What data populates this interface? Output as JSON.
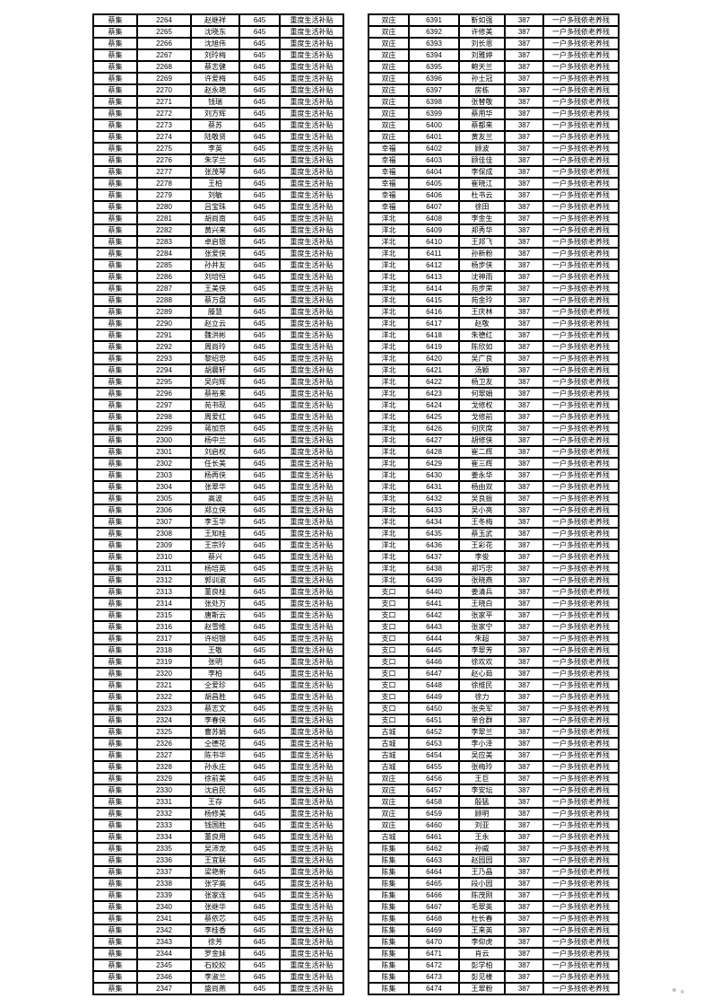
{
  "page": {
    "background": "#ffffff",
    "artifact_color": "#c0c0c0"
  },
  "tables": [
    {
      "id": "left-roster",
      "default_town": "蔡集",
      "amount": "645",
      "category": "重度生活补贴",
      "rows": [
        [
          "2264",
          "赵继祥"
        ],
        [
          "2265",
          "沈晓东"
        ],
        [
          "2266",
          "沈旭伟"
        ],
        [
          "2267",
          "刘玲梅"
        ],
        [
          "2268",
          "蔡志健"
        ],
        [
          "2269",
          "许爱梅"
        ],
        [
          "2270",
          "赵永艳"
        ],
        [
          "2271",
          "钱瑞"
        ],
        [
          "2272",
          "刘方辉"
        ],
        [
          "2273",
          "蔡苏"
        ],
        [
          "2274",
          "陆敬贤"
        ],
        [
          "2275",
          "李英"
        ],
        [
          "2276",
          "朱学兰"
        ],
        [
          "2277",
          "张茂琴"
        ],
        [
          "2278",
          "王柏"
        ],
        [
          "2279",
          "刘敏"
        ],
        [
          "2280",
          "吕宝珠"
        ],
        [
          "2281",
          "胡尚南"
        ],
        [
          "2282",
          "黄兴来"
        ],
        [
          "2283",
          "卓启银"
        ],
        [
          "2284",
          "张爱侠"
        ],
        [
          "2285",
          "孙井友"
        ],
        [
          "2286",
          "刘培恒"
        ],
        [
          "2287",
          "王美侠"
        ],
        [
          "2288",
          "蔡万盘"
        ],
        [
          "2289",
          "滕慧"
        ],
        [
          "2290",
          "赵立云"
        ],
        [
          "2291",
          "魏洪彬"
        ],
        [
          "2292",
          "周尚玲"
        ],
        [
          "2293",
          "黎绍忠"
        ],
        [
          "2294",
          "胡晨轩"
        ],
        [
          "2295",
          "吴向辉"
        ],
        [
          "2296",
          "蔡裕来"
        ],
        [
          "2297",
          "苑书现"
        ],
        [
          "2298",
          "周爱红"
        ],
        [
          "2299",
          "蒋加京"
        ],
        [
          "2300",
          "杨中兰"
        ],
        [
          "2301",
          "刘启权"
        ],
        [
          "2302",
          "任长美"
        ],
        [
          "2303",
          "杨再侠"
        ],
        [
          "2304",
          "张翠华"
        ],
        [
          "2305",
          "高波"
        ],
        [
          "2306",
          "郑立侠"
        ],
        [
          "2307",
          "李玉华"
        ],
        [
          "2308",
          "王知桂"
        ],
        [
          "2309",
          "王宗玲"
        ],
        [
          "2310",
          "蔡兴"
        ],
        [
          "2311",
          "杨培英"
        ],
        [
          "2312",
          "郭训淑"
        ],
        [
          "2313",
          "董良桂"
        ],
        [
          "2314",
          "张处万"
        ],
        [
          "2315",
          "唐斯云"
        ],
        [
          "2316",
          "赵雪维"
        ],
        [
          "2317",
          "许绍银"
        ],
        [
          "2318",
          "王敬"
        ],
        [
          "2319",
          "张明"
        ],
        [
          "2320",
          "李柏"
        ],
        [
          "2321",
          "仝爱珍"
        ],
        [
          "2322",
          "胡昌胜"
        ],
        [
          "2323",
          "蔡志文"
        ],
        [
          "2324",
          "李春侠"
        ],
        [
          "2325",
          "曹苏娟"
        ],
        [
          "2326",
          "仝德花"
        ],
        [
          "2327",
          "陈书华"
        ],
        [
          "2328",
          "孙永庄"
        ],
        [
          "2329",
          "徐前美"
        ],
        [
          "2330",
          "沈启民"
        ],
        [
          "2331",
          "王存"
        ],
        [
          "2332",
          "杨修美"
        ],
        [
          "2333",
          "钱国胜"
        ],
        [
          "2334",
          "董良用"
        ],
        [
          "2335",
          "吴沛龙"
        ],
        [
          "2336",
          "王宜联"
        ],
        [
          "2337",
          "梁艳新"
        ],
        [
          "2338",
          "张学高"
        ],
        [
          "2339",
          "张家连"
        ],
        [
          "2340",
          "张继华"
        ],
        [
          "2341",
          "蔡依芯"
        ],
        [
          "2342",
          "李桂香"
        ],
        [
          "2343",
          "徐芳"
        ],
        [
          "2344",
          "罗金妹"
        ],
        [
          "2345",
          "石姣姣"
        ],
        [
          "2346",
          "李淑兰"
        ],
        [
          "2347",
          "盛尚燕"
        ]
      ]
    },
    {
      "id": "right-roster",
      "amount": "387",
      "category": "一户多残依老养残",
      "rows": [
        [
          "双庄",
          "6391",
          "靳如强"
        ],
        [
          "双庄",
          "6392",
          "许修美"
        ],
        [
          "双庄",
          "6393",
          "刘长恩"
        ],
        [
          "双庄",
          "6394",
          "刘雅婷"
        ],
        [
          "双庄",
          "6395",
          "鲍天兰"
        ],
        [
          "双庄",
          "6396",
          "孙士冠"
        ],
        [
          "双庄",
          "6397",
          "房栋"
        ],
        [
          "双庄",
          "6398",
          "张替敬"
        ],
        [
          "双庄",
          "6399",
          "蔡用华"
        ],
        [
          "双庄",
          "6400",
          "蔡都来"
        ],
        [
          "双庄",
          "6401",
          "黄友兰"
        ],
        [
          "幸福",
          "6402",
          "顾波"
        ],
        [
          "幸福",
          "6403",
          "顾佳佳"
        ],
        [
          "幸福",
          "6404",
          "李保成"
        ],
        [
          "幸福",
          "6405",
          "崔晓江"
        ],
        [
          "幸福",
          "6406",
          "杜书云"
        ],
        [
          "幸福",
          "6407",
          "徐田"
        ],
        [
          "洋北",
          "6408",
          "李金生"
        ],
        [
          "洋北",
          "6409",
          "郑秀华"
        ],
        [
          "洋北",
          "6410",
          "王邦飞"
        ],
        [
          "洋北",
          "6411",
          "孙新粉"
        ],
        [
          "洋北",
          "6412",
          "杨步侠"
        ],
        [
          "洋北",
          "6413",
          "沈神雨"
        ],
        [
          "洋北",
          "6414",
          "苑步荣"
        ],
        [
          "洋北",
          "6415",
          "苑金玲"
        ],
        [
          "洋北",
          "6416",
          "王庆林"
        ],
        [
          "洋北",
          "6417",
          "赵敬"
        ],
        [
          "洋北",
          "6418",
          "朱德红"
        ],
        [
          "洋北",
          "6419",
          "陈欣如"
        ],
        [
          "洋北",
          "6420",
          "吴广良"
        ],
        [
          "洋北",
          "6421",
          "汤颖"
        ],
        [
          "洋北",
          "6422",
          "杨卫友"
        ],
        [
          "洋北",
          "6423",
          "何翠娟"
        ],
        [
          "洋北",
          "6424",
          "戈修权"
        ],
        [
          "洋北",
          "6425",
          "戈修前"
        ],
        [
          "洋北",
          "6426",
          "何庆席"
        ],
        [
          "洋北",
          "6427",
          "胡修侠"
        ],
        [
          "洋北",
          "6428",
          "崔二辉"
        ],
        [
          "洋北",
          "6429",
          "崔三辉"
        ],
        [
          "洋北",
          "6430",
          "姜永华"
        ],
        [
          "洋北",
          "6431",
          "杨由双"
        ],
        [
          "洋北",
          "6432",
          "吴良振"
        ],
        [
          "洋北",
          "6433",
          "吴小亮"
        ],
        [
          "洋北",
          "6434",
          "王冬梅"
        ],
        [
          "洋北",
          "6435",
          "蔡玉武"
        ],
        [
          "洋北",
          "6436",
          "王彩花"
        ],
        [
          "洋北",
          "6437",
          "李俊"
        ],
        [
          "洋北",
          "6438",
          "郑巧忠"
        ],
        [
          "洋北",
          "6439",
          "张晓燕"
        ],
        [
          "支口",
          "6440",
          "姜清兵"
        ],
        [
          "支口",
          "6441",
          "王晓白"
        ],
        [
          "支口",
          "6442",
          "张家平"
        ],
        [
          "支口",
          "6443",
          "张家宁"
        ],
        [
          "支口",
          "6444",
          "朱超"
        ],
        [
          "支口",
          "6445",
          "李翠芳"
        ],
        [
          "支口",
          "6446",
          "徐欢欢"
        ],
        [
          "支口",
          "6447",
          "赵心茹"
        ],
        [
          "支口",
          "6448",
          "徐维民"
        ],
        [
          "支口",
          "6449",
          "徐力"
        ],
        [
          "支口",
          "6450",
          "张央军"
        ],
        [
          "支口",
          "6451",
          "单合群"
        ],
        [
          "古城",
          "6452",
          "李翠兰"
        ],
        [
          "古城",
          "6453",
          "李小泽"
        ],
        [
          "古城",
          "6454",
          "吴应美"
        ],
        [
          "古城",
          "6455",
          "张梅玲"
        ],
        [
          "双庄",
          "6456",
          "王巨"
        ],
        [
          "双庄",
          "6457",
          "李安坛"
        ],
        [
          "双庄",
          "6458",
          "殷猛"
        ],
        [
          "双庄",
          "6459",
          "顾明"
        ],
        [
          "双庄",
          "6460",
          "刘亚"
        ],
        [
          "古城",
          "6461",
          "王永"
        ],
        [
          "陈集",
          "6462",
          "孙威"
        ],
        [
          "陈集",
          "6463",
          "赵园园"
        ],
        [
          "陈集",
          "6464",
          "王乃晶"
        ],
        [
          "陈集",
          "6465",
          "段小园"
        ],
        [
          "陈集",
          "6466",
          "陈茂刚"
        ],
        [
          "陈集",
          "6467",
          "毛翠英"
        ],
        [
          "陈集",
          "6468",
          "杜长春"
        ],
        [
          "陈集",
          "6469",
          "王来英"
        ],
        [
          "陈集",
          "6470",
          "李仰虎"
        ],
        [
          "陈集",
          "6471",
          "肖云"
        ],
        [
          "陈集",
          "6472",
          "彭学柏"
        ],
        [
          "陈集",
          "6473",
          "彭见楼"
        ],
        [
          "陈集",
          "6474",
          "王翠粉"
        ]
      ]
    }
  ]
}
